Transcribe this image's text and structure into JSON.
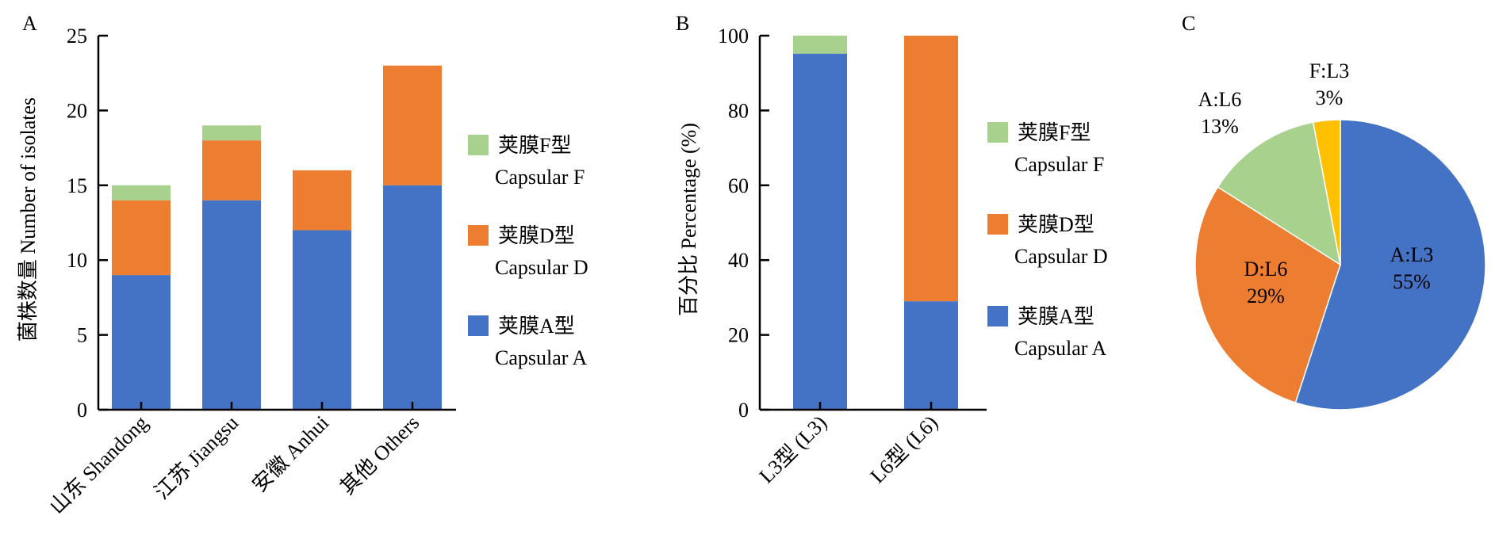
{
  "colors": {
    "capsular_a": "#4472C4",
    "capsular_d": "#ED7D31",
    "capsular_f": "#A9D18E",
    "f_l3": "#FFC000",
    "axis": "#000000"
  },
  "chart_data": [
    {
      "panel": "A",
      "type": "bar",
      "stacked": true,
      "ylabel": "菌株数量 Number of isolates",
      "xlabel": "",
      "ylim": [
        0,
        25
      ],
      "yticks": [
        0,
        5,
        10,
        15,
        20,
        25
      ],
      "categories": [
        "山东 Shandong",
        "江苏 Jiangsu",
        "安徽 Anhui",
        "其他 Others"
      ],
      "series": [
        {
          "name": "荚膜A型 Capsular A",
          "key": "capsular_a",
          "values": [
            9,
            14,
            12,
            15
          ]
        },
        {
          "name": "荚膜D型 Capsular D",
          "key": "capsular_d",
          "values": [
            5,
            4,
            4,
            8
          ]
        },
        {
          "name": "荚膜F型 Capsular F",
          "key": "capsular_f",
          "values": [
            1,
            1,
            0,
            0
          ]
        }
      ],
      "legend": [
        {
          "key": "capsular_f",
          "zh": "荚膜F型",
          "en": "Capsular F"
        },
        {
          "key": "capsular_d",
          "zh": "荚膜D型",
          "en": "Capsular D"
        },
        {
          "key": "capsular_a",
          "zh": "荚膜A型",
          "en": "Capsular A"
        }
      ],
      "legend_position": "right"
    },
    {
      "panel": "B",
      "type": "bar",
      "stacked": true,
      "ylabel": "百分比 Percentage (%)",
      "xlabel": "",
      "ylim": [
        0,
        100
      ],
      "yticks": [
        0,
        20,
        40,
        60,
        80,
        100
      ],
      "categories": [
        "L3型 (L3)",
        "L6型 (L6)"
      ],
      "series": [
        {
          "name": "荚膜A型 Capsular A",
          "key": "capsular_a",
          "values": [
            95.2,
            29
          ]
        },
        {
          "name": "荚膜D型 Capsular D",
          "key": "capsular_d",
          "values": [
            0,
            71
          ]
        },
        {
          "name": "荚膜F型 Capsular F",
          "key": "capsular_f",
          "values": [
            4.8,
            0
          ]
        }
      ],
      "legend": [
        {
          "key": "capsular_f",
          "zh": "荚膜F型",
          "en": "Capsular F"
        },
        {
          "key": "capsular_d",
          "zh": "荚膜D型",
          "en": "Capsular D"
        },
        {
          "key": "capsular_a",
          "zh": "荚膜A型",
          "en": "Capsular A"
        }
      ],
      "legend_position": "right"
    },
    {
      "panel": "C",
      "type": "pie",
      "slices": [
        {
          "label": "A:L3",
          "pct_label": "55%",
          "value": 55,
          "key": "capsular_a"
        },
        {
          "label": "D:L6",
          "pct_label": "29%",
          "value": 29,
          "key": "capsular_d"
        },
        {
          "label": "A:L6",
          "pct_label": "13%",
          "value": 13,
          "key": "capsular_f"
        },
        {
          "label": "F:L3",
          "pct_label": "3%",
          "value": 3,
          "key": "f_l3"
        }
      ]
    }
  ]
}
